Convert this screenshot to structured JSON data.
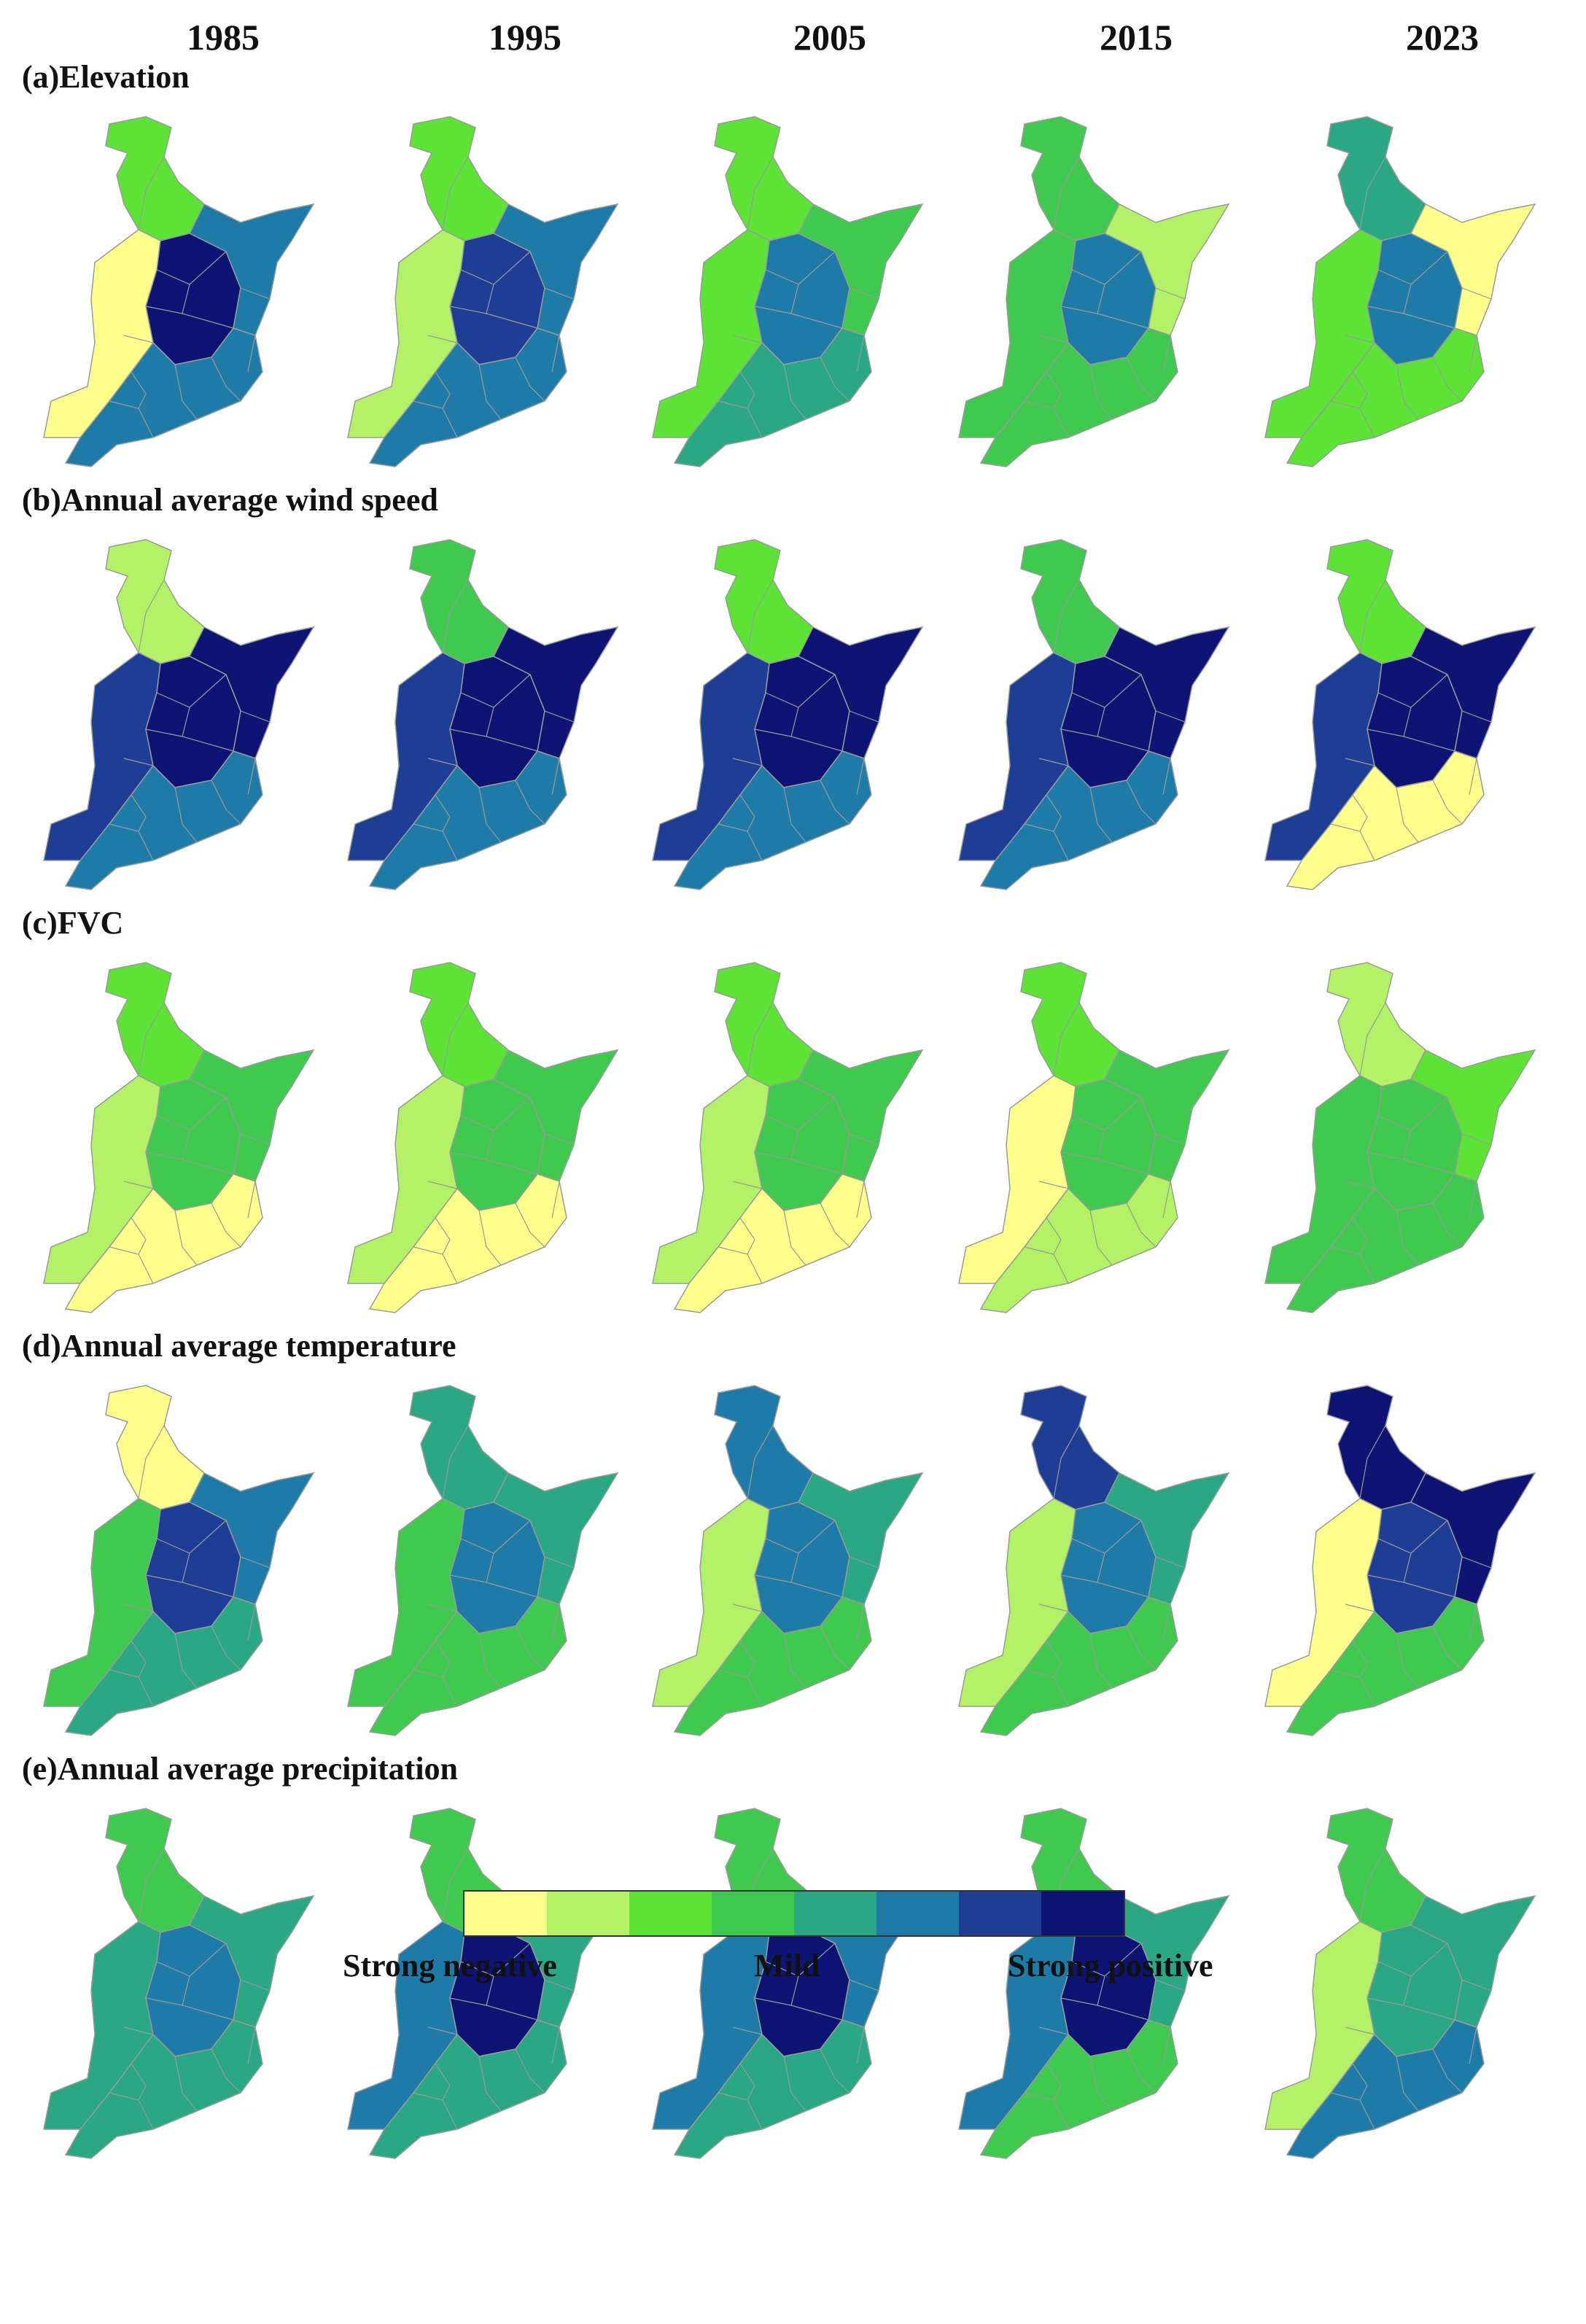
{
  "years": [
    "1985",
    "1995",
    "2005",
    "2015",
    "2023"
  ],
  "panels": [
    {
      "title": "(a)Elevation",
      "levels": [
        [
          2,
          0,
          7,
          5,
          5
        ],
        [
          2,
          1,
          6,
          5,
          5
        ],
        [
          2,
          2,
          5,
          3,
          4
        ],
        [
          3,
          3,
          5,
          1,
          3
        ],
        [
          4,
          2,
          5,
          0,
          2
        ]
      ]
    },
    {
      "title": "(b)Annual average wind speed",
      "levels": [
        [
          1,
          6,
          7,
          7,
          5
        ],
        [
          3,
          6,
          7,
          7,
          5
        ],
        [
          2,
          6,
          7,
          7,
          5
        ],
        [
          3,
          6,
          7,
          7,
          5
        ],
        [
          2,
          6,
          7,
          7,
          0
        ]
      ]
    },
    {
      "title": "(c)FVC",
      "levels": [
        [
          2,
          1,
          3,
          3,
          0
        ],
        [
          2,
          1,
          3,
          3,
          0
        ],
        [
          2,
          1,
          3,
          3,
          0
        ],
        [
          2,
          0,
          3,
          3,
          1
        ],
        [
          1,
          3,
          3,
          2,
          3
        ]
      ]
    },
    {
      "title": "(d)Annual average temperature",
      "levels": [
        [
          0,
          3,
          6,
          5,
          4
        ],
        [
          4,
          3,
          5,
          4,
          3
        ],
        [
          5,
          1,
          5,
          4,
          3
        ],
        [
          6,
          1,
          5,
          4,
          3
        ],
        [
          7,
          0,
          6,
          7,
          3
        ]
      ]
    },
    {
      "title": "(e)Annual average precipitation",
      "levels": [
        [
          3,
          4,
          5,
          4,
          4
        ],
        [
          3,
          5,
          7,
          4,
          4
        ],
        [
          3,
          5,
          7,
          5,
          4
        ],
        [
          3,
          5,
          7,
          4,
          3
        ],
        [
          3,
          1,
          4,
          4,
          5
        ]
      ]
    }
  ],
  "legend": {
    "colors": [
      "#ffff8c",
      "#b3f266",
      "#5ce335",
      "#3fca4f",
      "#2aa783",
      "#1e7ba8",
      "#1e3d94",
      "#0d1473"
    ],
    "labels": {
      "left": "Strong negative",
      "middle": "Mild",
      "right": "Strong positive"
    }
  },
  "outline_color": "#9a9a9a"
}
